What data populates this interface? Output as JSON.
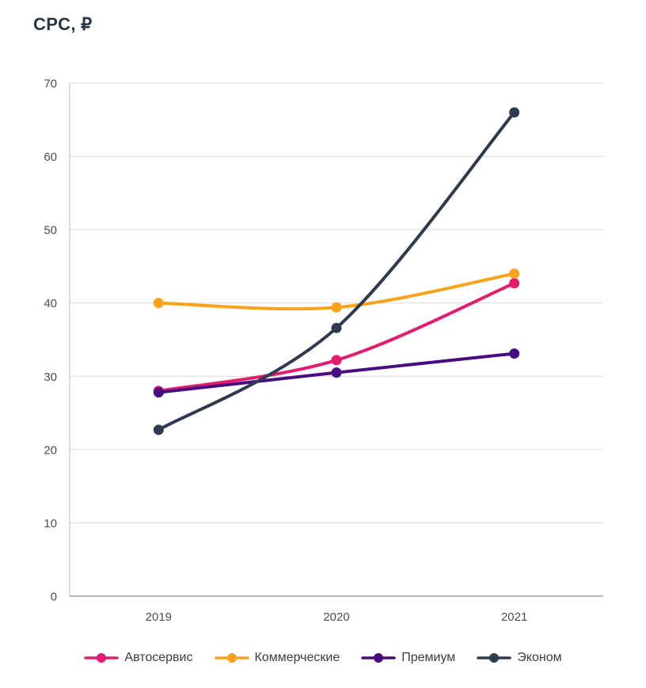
{
  "chart_data": {
    "type": "line",
    "title": "CPC, ₽",
    "categories": [
      "2019",
      "2020",
      "2021"
    ],
    "series": [
      {
        "name": "Автосервис",
        "color": "#E31C6F",
        "values": [
          28.0,
          32.2,
          42.7
        ]
      },
      {
        "name": "Коммерческие",
        "color": "#F9A21B",
        "values": [
          40.0,
          39.4,
          44.0
        ]
      },
      {
        "name": "Премиум",
        "color": "#490C80",
        "values": [
          27.8,
          30.5,
          33.1
        ]
      },
      {
        "name": "Эконом",
        "color": "#2E3B4E",
        "values": [
          22.7,
          36.6,
          66.0
        ]
      }
    ],
    "ylim": [
      0,
      70
    ],
    "yticks": [
      0,
      10,
      20,
      30,
      40,
      50,
      60,
      70
    ],
    "grid": true,
    "line_style": "smooth",
    "legend_position": "bottom",
    "colors": {
      "grid": "#d9d9d9",
      "plot_border": "#c9c9c9",
      "axis_bottom": "#a0a0a0",
      "tick_label": "#4d4d4d",
      "title": "#253746",
      "legend_label": "#3d3d3d",
      "background": "#ffffff"
    }
  }
}
